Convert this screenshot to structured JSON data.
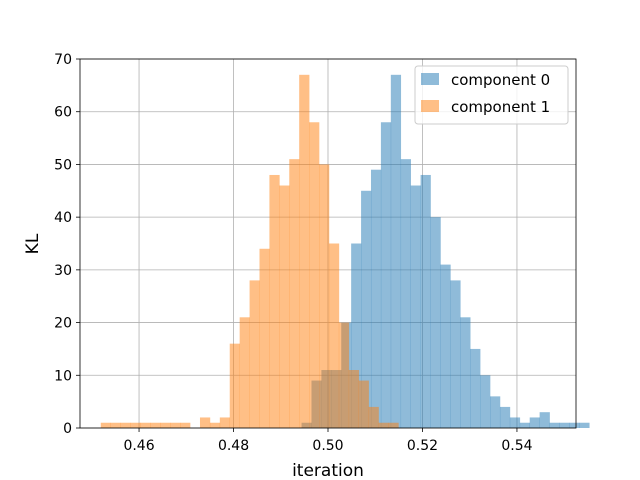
{
  "chart_data": {
    "type": "histogram",
    "xlabel": "iteration",
    "ylabel": "KL",
    "xlim": [
      0.4475,
      0.5525
    ],
    "ylim": [
      0,
      70
    ],
    "xticks": [
      0.46,
      0.48,
      0.5,
      0.52,
      0.54
    ],
    "xtick_labels": [
      "0.46",
      "0.48",
      "0.50",
      "0.52",
      "0.54"
    ],
    "yticks": [
      0,
      10,
      20,
      30,
      40,
      50,
      60,
      70
    ],
    "ytick_labels": [
      "0",
      "10",
      "20",
      "30",
      "40",
      "50",
      "60",
      "70"
    ],
    "grid": true,
    "legend_position": "upper right",
    "series": [
      {
        "name": "component 0",
        "color": "#1f77b4",
        "alpha": 0.5,
        "bin_start": 0.4944,
        "bin_width": 0.0021,
        "counts": [
          1,
          9,
          11,
          11,
          20,
          35,
          45,
          49,
          58,
          67,
          51,
          46,
          48,
          40,
          31,
          28,
          21,
          15,
          10,
          6,
          4,
          2,
          1,
          2,
          3,
          1,
          1,
          1,
          1
        ]
      },
      {
        "name": "component 1",
        "color": "#ff7f0e",
        "alpha": 0.5,
        "bin_start": 0.4519,
        "bin_width": 0.0021,
        "counts": [
          1,
          1,
          1,
          1,
          1,
          1,
          1,
          1,
          1,
          0,
          2,
          1,
          2,
          16,
          21,
          28,
          34,
          48,
          46,
          51,
          67,
          58,
          50,
          35,
          20,
          11,
          9,
          4,
          1,
          1
        ]
      }
    ]
  }
}
